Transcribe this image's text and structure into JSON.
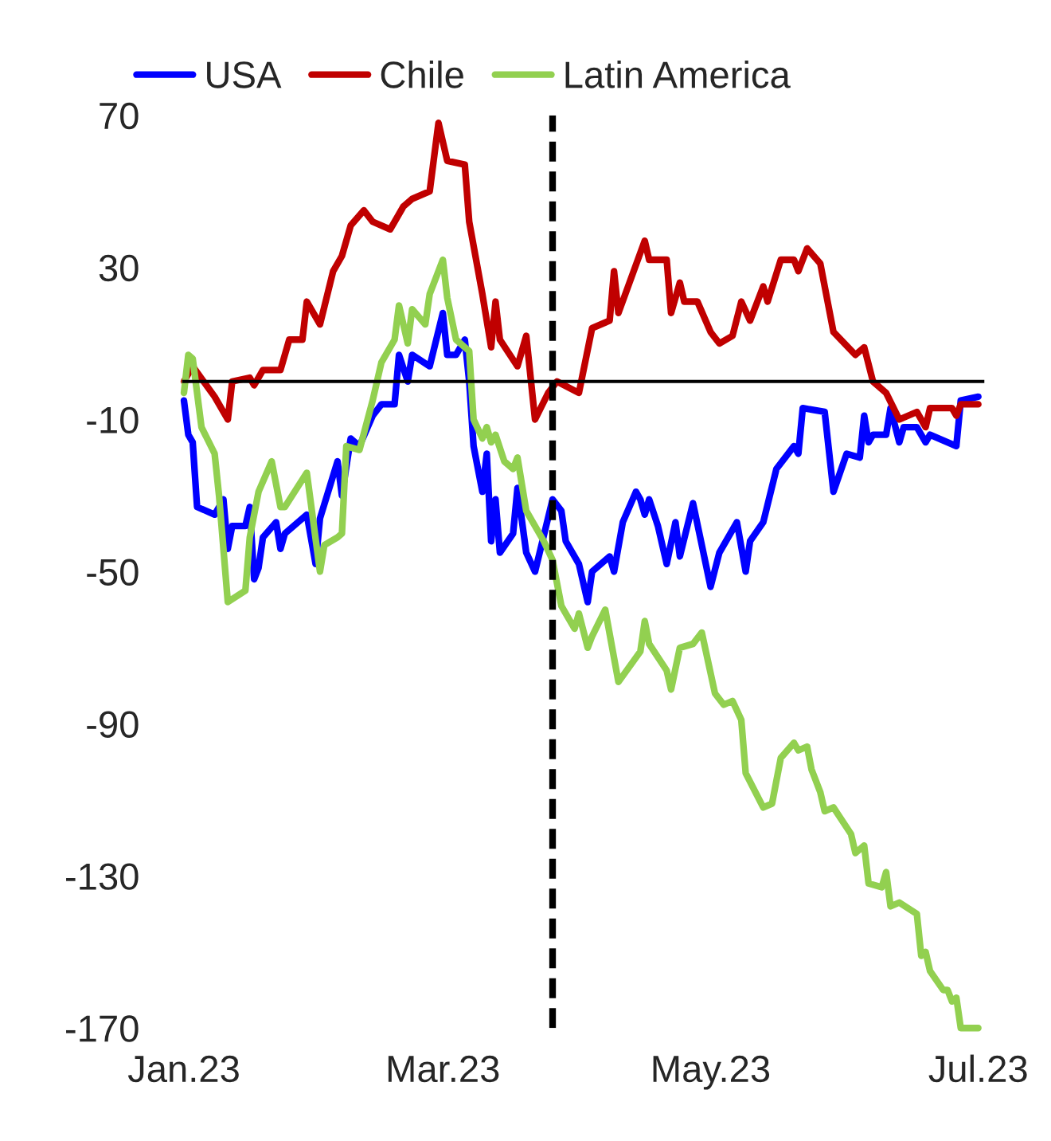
{
  "chart_data": {
    "type": "line",
    "series": [
      {
        "name": "USA",
        "color": "#0000ff",
        "x": [
          "2023-01-01",
          "2023-01-02",
          "2023-01-03",
          "2023-01-04",
          "2023-01-08",
          "2023-01-10",
          "2023-01-11",
          "2023-01-12",
          "2023-01-15",
          "2023-01-16",
          "2023-01-17",
          "2023-01-18",
          "2023-01-19",
          "2023-01-22",
          "2023-01-23",
          "2023-01-24",
          "2023-01-29",
          "2023-01-31",
          "2023-02-01",
          "2023-02-05",
          "2023-02-06",
          "2023-02-08",
          "2023-02-10",
          "2023-02-13",
          "2023-02-15",
          "2023-02-18",
          "2023-02-19",
          "2023-02-21",
          "2023-02-22",
          "2023-02-26",
          "2023-03-01",
          "2023-03-02",
          "2023-03-04",
          "2023-03-06",
          "2023-03-07",
          "2023-03-08",
          "2023-03-10",
          "2023-03-11",
          "2023-03-12",
          "2023-03-13",
          "2023-03-14",
          "2023-03-17",
          "2023-03-18",
          "2023-03-20",
          "2023-03-22",
          "2023-03-26",
          "2023-03-28",
          "2023-03-29",
          "2023-04-01",
          "2023-04-03",
          "2023-04-04",
          "2023-04-08",
          "2023-04-09",
          "2023-04-11",
          "2023-04-14",
          "2023-04-15",
          "2023-04-16",
          "2023-04-17",
          "2023-04-19",
          "2023-04-21",
          "2023-04-23",
          "2023-04-24",
          "2023-04-27",
          "2023-05-01",
          "2023-05-03",
          "2023-05-07",
          "2023-05-09",
          "2023-05-10",
          "2023-05-13",
          "2023-05-16",
          "2023-05-20",
          "2023-05-21",
          "2023-05-22",
          "2023-05-27",
          "2023-05-29",
          "2023-06-01",
          "2023-06-04",
          "2023-06-05",
          "2023-06-06",
          "2023-06-07",
          "2023-06-10",
          "2023-06-11",
          "2023-06-13",
          "2023-06-14",
          "2023-06-17",
          "2023-06-19",
          "2023-06-20",
          "2023-06-24",
          "2023-06-26",
          "2023-06-27",
          "2023-07-01"
        ],
        "values": [
          -5,
          -14,
          -16,
          -33,
          -35,
          -31,
          -44,
          -38,
          -38,
          -33,
          -52,
          -49,
          -41,
          -37,
          -44,
          -40,
          -35,
          -48,
          -36,
          -21,
          -30,
          -15,
          -17,
          -9,
          -6,
          -6,
          7,
          0,
          7,
          4,
          18,
          7,
          7,
          11,
          0,
          -17,
          -29,
          -19,
          -42,
          -31,
          -45,
          -40,
          -28,
          -45,
          -50,
          -31,
          -34,
          -42,
          -48,
          -58,
          -50,
          -46,
          -50,
          -37,
          -29,
          -31,
          -35,
          -31,
          -38,
          -48,
          -37,
          -46,
          -32,
          -54,
          -45,
          -37,
          -50,
          -42,
          -37,
          -23,
          -17,
          -19,
          -7,
          -8,
          -29,
          -19,
          -20,
          -9,
          -16,
          -14,
          -14,
          -7,
          -16,
          -12,
          -12,
          -16,
          -14,
          -16,
          -17,
          -5,
          -4
        ]
      },
      {
        "name": "Chile",
        "color": "#c00000",
        "x": [
          "2023-01-01",
          "2023-01-03",
          "2023-01-08",
          "2023-01-11",
          "2023-01-12",
          "2023-01-16",
          "2023-01-17",
          "2023-01-19",
          "2023-01-23",
          "2023-01-25",
          "2023-01-28",
          "2023-01-29",
          "2023-02-01",
          "2023-02-04",
          "2023-02-06",
          "2023-02-08",
          "2023-02-11",
          "2023-02-13",
          "2023-02-17",
          "2023-02-20",
          "2023-02-22",
          "2023-02-26",
          "2023-02-28",
          "2023-03-02",
          "2023-03-06",
          "2023-03-07",
          "2023-03-10",
          "2023-03-12",
          "2023-03-13",
          "2023-03-14",
          "2023-03-18",
          "2023-03-20",
          "2023-03-22",
          "2023-03-25",
          "2023-03-27",
          "2023-04-01",
          "2023-04-04",
          "2023-04-08",
          "2023-04-09",
          "2023-04-10",
          "2023-04-16",
          "2023-04-17",
          "2023-04-21",
          "2023-04-22",
          "2023-04-24",
          "2023-04-25",
          "2023-04-28",
          "2023-05-01",
          "2023-05-03",
          "2023-05-06",
          "2023-05-08",
          "2023-05-10",
          "2023-05-13",
          "2023-05-14",
          "2023-05-17",
          "2023-05-20",
          "2023-05-21",
          "2023-05-23",
          "2023-05-26",
          "2023-05-29",
          "2023-06-03",
          "2023-06-05",
          "2023-06-07",
          "2023-06-10",
          "2023-06-13",
          "2023-06-17",
          "2023-06-19",
          "2023-06-20",
          "2023-06-25",
          "2023-06-26",
          "2023-06-27",
          "2023-07-01"
        ],
        "values": [
          0,
          4,
          -4,
          -10,
          0,
          1,
          -1,
          3,
          3,
          11,
          11,
          21,
          15,
          29,
          33,
          41,
          45,
          42,
          40,
          46,
          48,
          50,
          68,
          58,
          57,
          42,
          23,
          9,
          21,
          11,
          4,
          12,
          -10,
          -3,
          0,
          -3,
          14,
          16,
          29,
          18,
          37,
          32,
          32,
          18,
          26,
          21,
          21,
          13,
          10,
          12,
          21,
          16,
          25,
          21,
          32,
          32,
          29,
          35,
          31,
          13,
          7,
          9,
          0,
          -3,
          -10,
          -8,
          -12,
          -7,
          -7,
          -9,
          -6,
          -6
        ]
      },
      {
        "name": "Latin America",
        "color": "#92d050",
        "x": [
          "2023-01-01",
          "2023-01-02",
          "2023-01-03",
          "2023-01-05",
          "2023-01-08",
          "2023-01-09",
          "2023-01-11",
          "2023-01-15",
          "2023-01-16",
          "2023-01-18",
          "2023-01-21",
          "2023-01-23",
          "2023-01-24",
          "2023-01-29",
          "2023-02-01",
          "2023-02-02",
          "2023-02-05",
          "2023-02-06",
          "2023-02-07",
          "2023-02-10",
          "2023-02-13",
          "2023-02-15",
          "2023-02-18",
          "2023-02-19",
          "2023-02-21",
          "2023-02-22",
          "2023-02-25",
          "2023-02-26",
          "2023-03-01",
          "2023-03-02",
          "2023-03-04",
          "2023-03-07",
          "2023-03-08",
          "2023-03-10",
          "2023-03-11",
          "2023-03-12",
          "2023-03-13",
          "2023-03-15",
          "2023-03-17",
          "2023-03-18",
          "2023-03-20",
          "2023-03-24",
          "2023-03-26",
          "2023-03-28",
          "2023-03-31",
          "2023-04-01",
          "2023-04-03",
          "2023-04-04",
          "2023-04-07",
          "2023-04-10",
          "2023-04-15",
          "2023-04-16",
          "2023-04-17",
          "2023-04-21",
          "2023-04-22",
          "2023-04-24",
          "2023-04-27",
          "2023-04-29",
          "2023-05-02",
          "2023-05-04",
          "2023-05-06",
          "2023-05-08",
          "2023-05-09",
          "2023-05-13",
          "2023-05-15",
          "2023-05-17",
          "2023-05-20",
          "2023-05-21",
          "2023-05-23",
          "2023-05-24",
          "2023-05-26",
          "2023-05-27",
          "2023-05-29",
          "2023-06-02",
          "2023-06-03",
          "2023-06-05",
          "2023-06-06",
          "2023-06-09",
          "2023-06-10",
          "2023-06-11",
          "2023-06-13",
          "2023-06-17",
          "2023-06-18",
          "2023-06-19",
          "2023-06-20",
          "2023-06-23",
          "2023-06-24",
          "2023-06-25",
          "2023-06-26",
          "2023-06-27",
          "2023-07-01"
        ],
        "values": [
          -3,
          7,
          6,
          -12,
          -19,
          -30,
          -58,
          -55,
          -41,
          -29,
          -21,
          -33,
          -33,
          -24,
          -50,
          -43,
          -41,
          -40,
          -17,
          -18,
          -5,
          5,
          11,
          20,
          10,
          19,
          15,
          23,
          32,
          22,
          11,
          8,
          -10,
          -15,
          -12,
          -16,
          -14,
          -21,
          -23,
          -20,
          -34,
          -42,
          -47,
          -59,
          -65,
          -61,
          -70,
          -67,
          -60,
          -79,
          -71,
          -63,
          -69,
          -76,
          -81,
          -70,
          -69,
          -66,
          -82,
          -85,
          -84,
          -89,
          -103,
          -112,
          -111,
          -99,
          -95,
          -97,
          -96,
          -102,
          -108,
          -113,
          -112,
          -119,
          -124,
          -122,
          -132,
          -133,
          -129,
          -138,
          -137,
          -140,
          -151,
          -150,
          -155,
          -160,
          -160,
          -163,
          -162,
          -170,
          -170
        ]
      }
    ],
    "xlim": [
      "2023-01-01",
      "2023-07-02"
    ],
    "xticks": [
      {
        "value": "2023-01-01",
        "label": "Jan.23"
      },
      {
        "value": "2023-03-01",
        "label": "Mar.23"
      },
      {
        "value": "2023-05-01",
        "label": "May.23"
      },
      {
        "value": "2023-07-01",
        "label": "Jul.23"
      }
    ],
    "ylim": [
      -170,
      70
    ],
    "yticks": [
      -170,
      -130,
      -90,
      -50,
      -10,
      30,
      70
    ],
    "ref_lines": [
      {
        "axis": "x",
        "value": "2023-03-26",
        "color": "#000000",
        "line_style": "dashed"
      }
    ],
    "grid": false,
    "legend": "top",
    "marker": "none",
    "line_style": "solid"
  }
}
